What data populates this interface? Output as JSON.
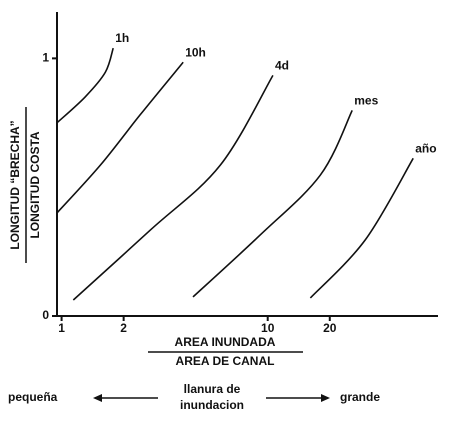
{
  "chart_data": {
    "type": "line",
    "log_x": true,
    "grid": false,
    "color": "#111111",
    "xlim": [
      0.95,
      67
    ],
    "xticks": [
      1,
      2,
      10,
      20
    ],
    "ylim": [
      0,
      1.18
    ],
    "yticks": [
      0,
      1
    ],
    "ylabel": {
      "numerator": "LONGITUD “BRECHA”",
      "denominator": "LONGITUD COSTA"
    },
    "xlabel": {
      "numerator": "AREA INUNDADA",
      "denominator": "AREA DE CANAL"
    },
    "scale_note": {
      "left": "pequeña",
      "center": [
        "llanura de",
        "inundacion"
      ],
      "right": "grande"
    },
    "series": [
      {
        "name": "1h",
        "x": [
          0.95,
          1.3,
          1.63,
          1.78
        ],
        "values": [
          0.75,
          0.85,
          0.946,
          1.04
        ]
      },
      {
        "name": "10h",
        "x": [
          0.95,
          1.54,
          2.4,
          3.89
        ],
        "values": [
          0.4,
          0.585,
          0.78,
          0.985
        ]
      },
      {
        "name": "4d",
        "x": [
          1.14,
          2.69,
          5.88,
          10.6
        ],
        "values": [
          0.062,
          0.333,
          0.585,
          0.934
        ]
      },
      {
        "name": "mes",
        "x": [
          4.34,
          9.18,
          18.0,
          25.7
        ],
        "values": [
          0.074,
          0.314,
          0.547,
          0.798
        ]
      },
      {
        "name": "año",
        "x": [
          16.1,
          29.7,
          50.8
        ],
        "values": [
          0.07,
          0.295,
          0.612
        ]
      }
    ]
  }
}
